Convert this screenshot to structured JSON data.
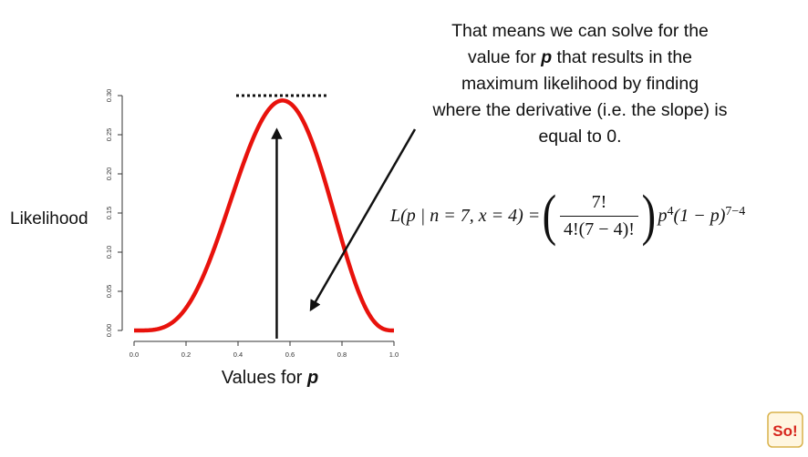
{
  "annotation": {
    "line1": "That means we can solve for the",
    "line2_pre": "value for ",
    "line2_var": "p",
    "line2_post": " that results in the",
    "line3": "maximum likelihood by finding",
    "line4": "where the derivative (i.e. the slope) is",
    "line5": "equal to 0."
  },
  "formula": {
    "lhs": "L(p | n = 7, x = 4) =",
    "numerator": "7!",
    "denominator": "4!(7 − 4)!",
    "p_base": "p",
    "p_exp": "4",
    "q_base": "(1 − p)",
    "q_exp": "7−4"
  },
  "logo": {
    "text": "So!",
    "icon": "statquest-logo-icon"
  },
  "chart_data": {
    "type": "line",
    "title": "",
    "xlabel_prefix": "Values for ",
    "xlabel_var": "p",
    "ylabel": "Likelihood",
    "xlim": [
      0,
      1
    ],
    "ylim": [
      0,
      0.3
    ],
    "xticks": [
      0.0,
      0.2,
      0.4,
      0.6,
      0.8,
      1.0
    ],
    "xtick_labels": [
      "0.0",
      "0.2",
      "0.4",
      "0.6",
      "0.8",
      "1.0"
    ],
    "yticks": [
      0.0,
      0.05,
      0.1,
      0.15,
      0.2,
      0.25,
      0.3
    ],
    "ytick_labels": [
      "0.00",
      "0.05",
      "0.10",
      "0.15",
      "0.20",
      "0.25",
      "0.30"
    ],
    "grid": false,
    "series": [
      {
        "color": "#e8120c",
        "function": "binomial likelihood, n = 7, x = 4",
        "x": [
          0.0,
          0.05,
          0.1,
          0.15,
          0.2,
          0.25,
          0.3,
          0.35,
          0.4,
          0.45,
          0.5,
          0.55,
          0.5714,
          0.6,
          0.65,
          0.7,
          0.75,
          0.8,
          0.85,
          0.9,
          0.95,
          1.0
        ],
        "y": [
          0.0,
          0.0002,
          0.0026,
          0.0109,
          0.0287,
          0.0577,
          0.0972,
          0.1442,
          0.1935,
          0.2388,
          0.2734,
          0.2918,
          0.2937,
          0.2903,
          0.2679,
          0.2269,
          0.173,
          0.1147,
          0.0617,
          0.023,
          0.0036,
          0.0
        ]
      }
    ],
    "annotations": {
      "max_line_y": 0.3,
      "max_line_x_range": [
        0.4,
        0.74
      ],
      "max_line_color": "#111111",
      "vertical_arrow_x": 0.57,
      "vertical_arrow_y_range": [
        0.0,
        0.27
      ],
      "pointer_arrow_color": "#111111"
    }
  }
}
